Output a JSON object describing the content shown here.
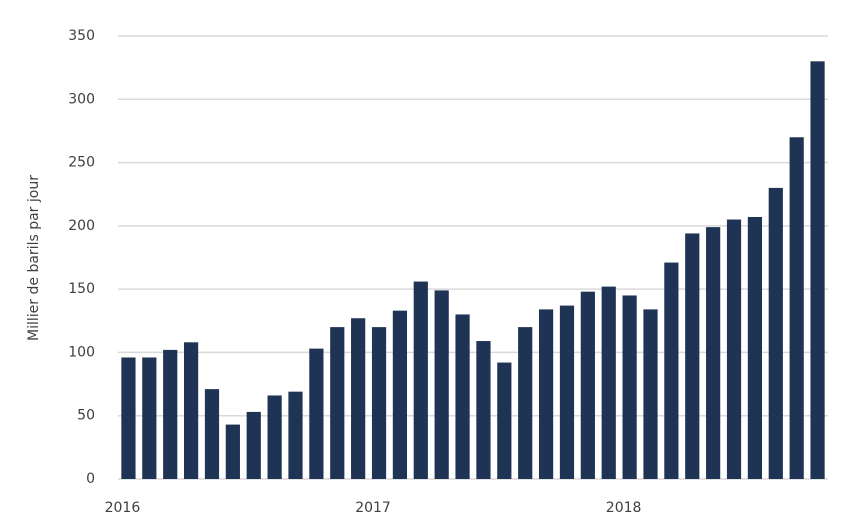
{
  "chart_data": {
    "type": "bar",
    "y_label": "Millier de barils par jour",
    "categories": [
      "2016",
      null,
      null,
      null,
      null,
      null,
      null,
      null,
      null,
      null,
      null,
      null,
      "2017",
      null,
      null,
      null,
      null,
      null,
      null,
      null,
      null,
      null,
      null,
      null,
      "2018",
      null,
      null,
      null,
      null,
      null,
      null,
      null,
      null,
      null
    ],
    "values": [
      96,
      96,
      102,
      108,
      71,
      43,
      53,
      66,
      69,
      103,
      120,
      127,
      120,
      133,
      156,
      149,
      130,
      109,
      92,
      120,
      134,
      137,
      148,
      152,
      145,
      134,
      171,
      194,
      199,
      205,
      207,
      230,
      270,
      330
    ],
    "color": "#1f3354",
    "ylim": [
      0,
      350
    ],
    "yticks": [
      0,
      50,
      100,
      150,
      200,
      250,
      300,
      350
    ],
    "grid": true
  }
}
